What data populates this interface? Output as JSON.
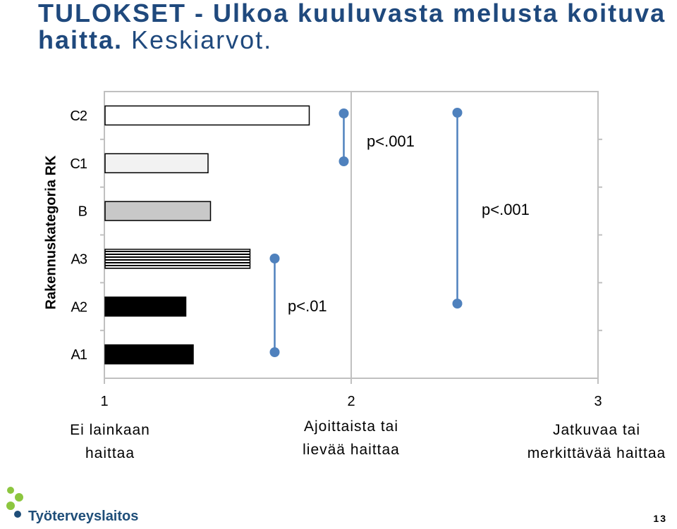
{
  "title": {
    "bold": "TULOKSET - Ulkoa kuuluvasta melusta koituva haitta.",
    "normal": "Keskiarvot."
  },
  "chart_data": {
    "type": "bar",
    "orientation": "horizontal",
    "ylabel": "Rakennuskategoria RK",
    "categories": [
      "C2",
      "C1",
      "B",
      "A3",
      "A2",
      "A1"
    ],
    "values": [
      1.83,
      1.42,
      1.43,
      1.59,
      1.33,
      1.36
    ],
    "xlim": [
      1,
      3
    ],
    "x_ticks": [
      {
        "value": 1,
        "label": "1",
        "desc": [
          "Ei lainkaan",
          "haittaa"
        ]
      },
      {
        "value": 2,
        "label": "2",
        "desc": [
          "Ajoittaista tai",
          "lievää haittaa"
        ]
      },
      {
        "value": 3,
        "label": "3",
        "desc": [
          "Jatkuvaa tai",
          "merkittävää haittaa"
        ]
      }
    ],
    "comparisons": [
      {
        "from": "A1",
        "to": "A3",
        "x": 1.69,
        "label": "p<.01"
      },
      {
        "from": "C1",
        "to": "C2",
        "x": 1.97,
        "label": "p<.001"
      },
      {
        "from": "A2",
        "to": "C2",
        "x": 2.43,
        "label": "p<.001"
      }
    ],
    "bar_styles": {
      "C2": "white",
      "C1": "light",
      "B": "gray",
      "A3": "striped",
      "A2": "black",
      "A1": "black"
    },
    "grid": true
  },
  "footer": {
    "logo_text": "Työterveyslaitos",
    "page_number": "13"
  },
  "colors": {
    "title": "#1f497d",
    "marker": "#4f81bd",
    "connector": "#4f81bd"
  }
}
